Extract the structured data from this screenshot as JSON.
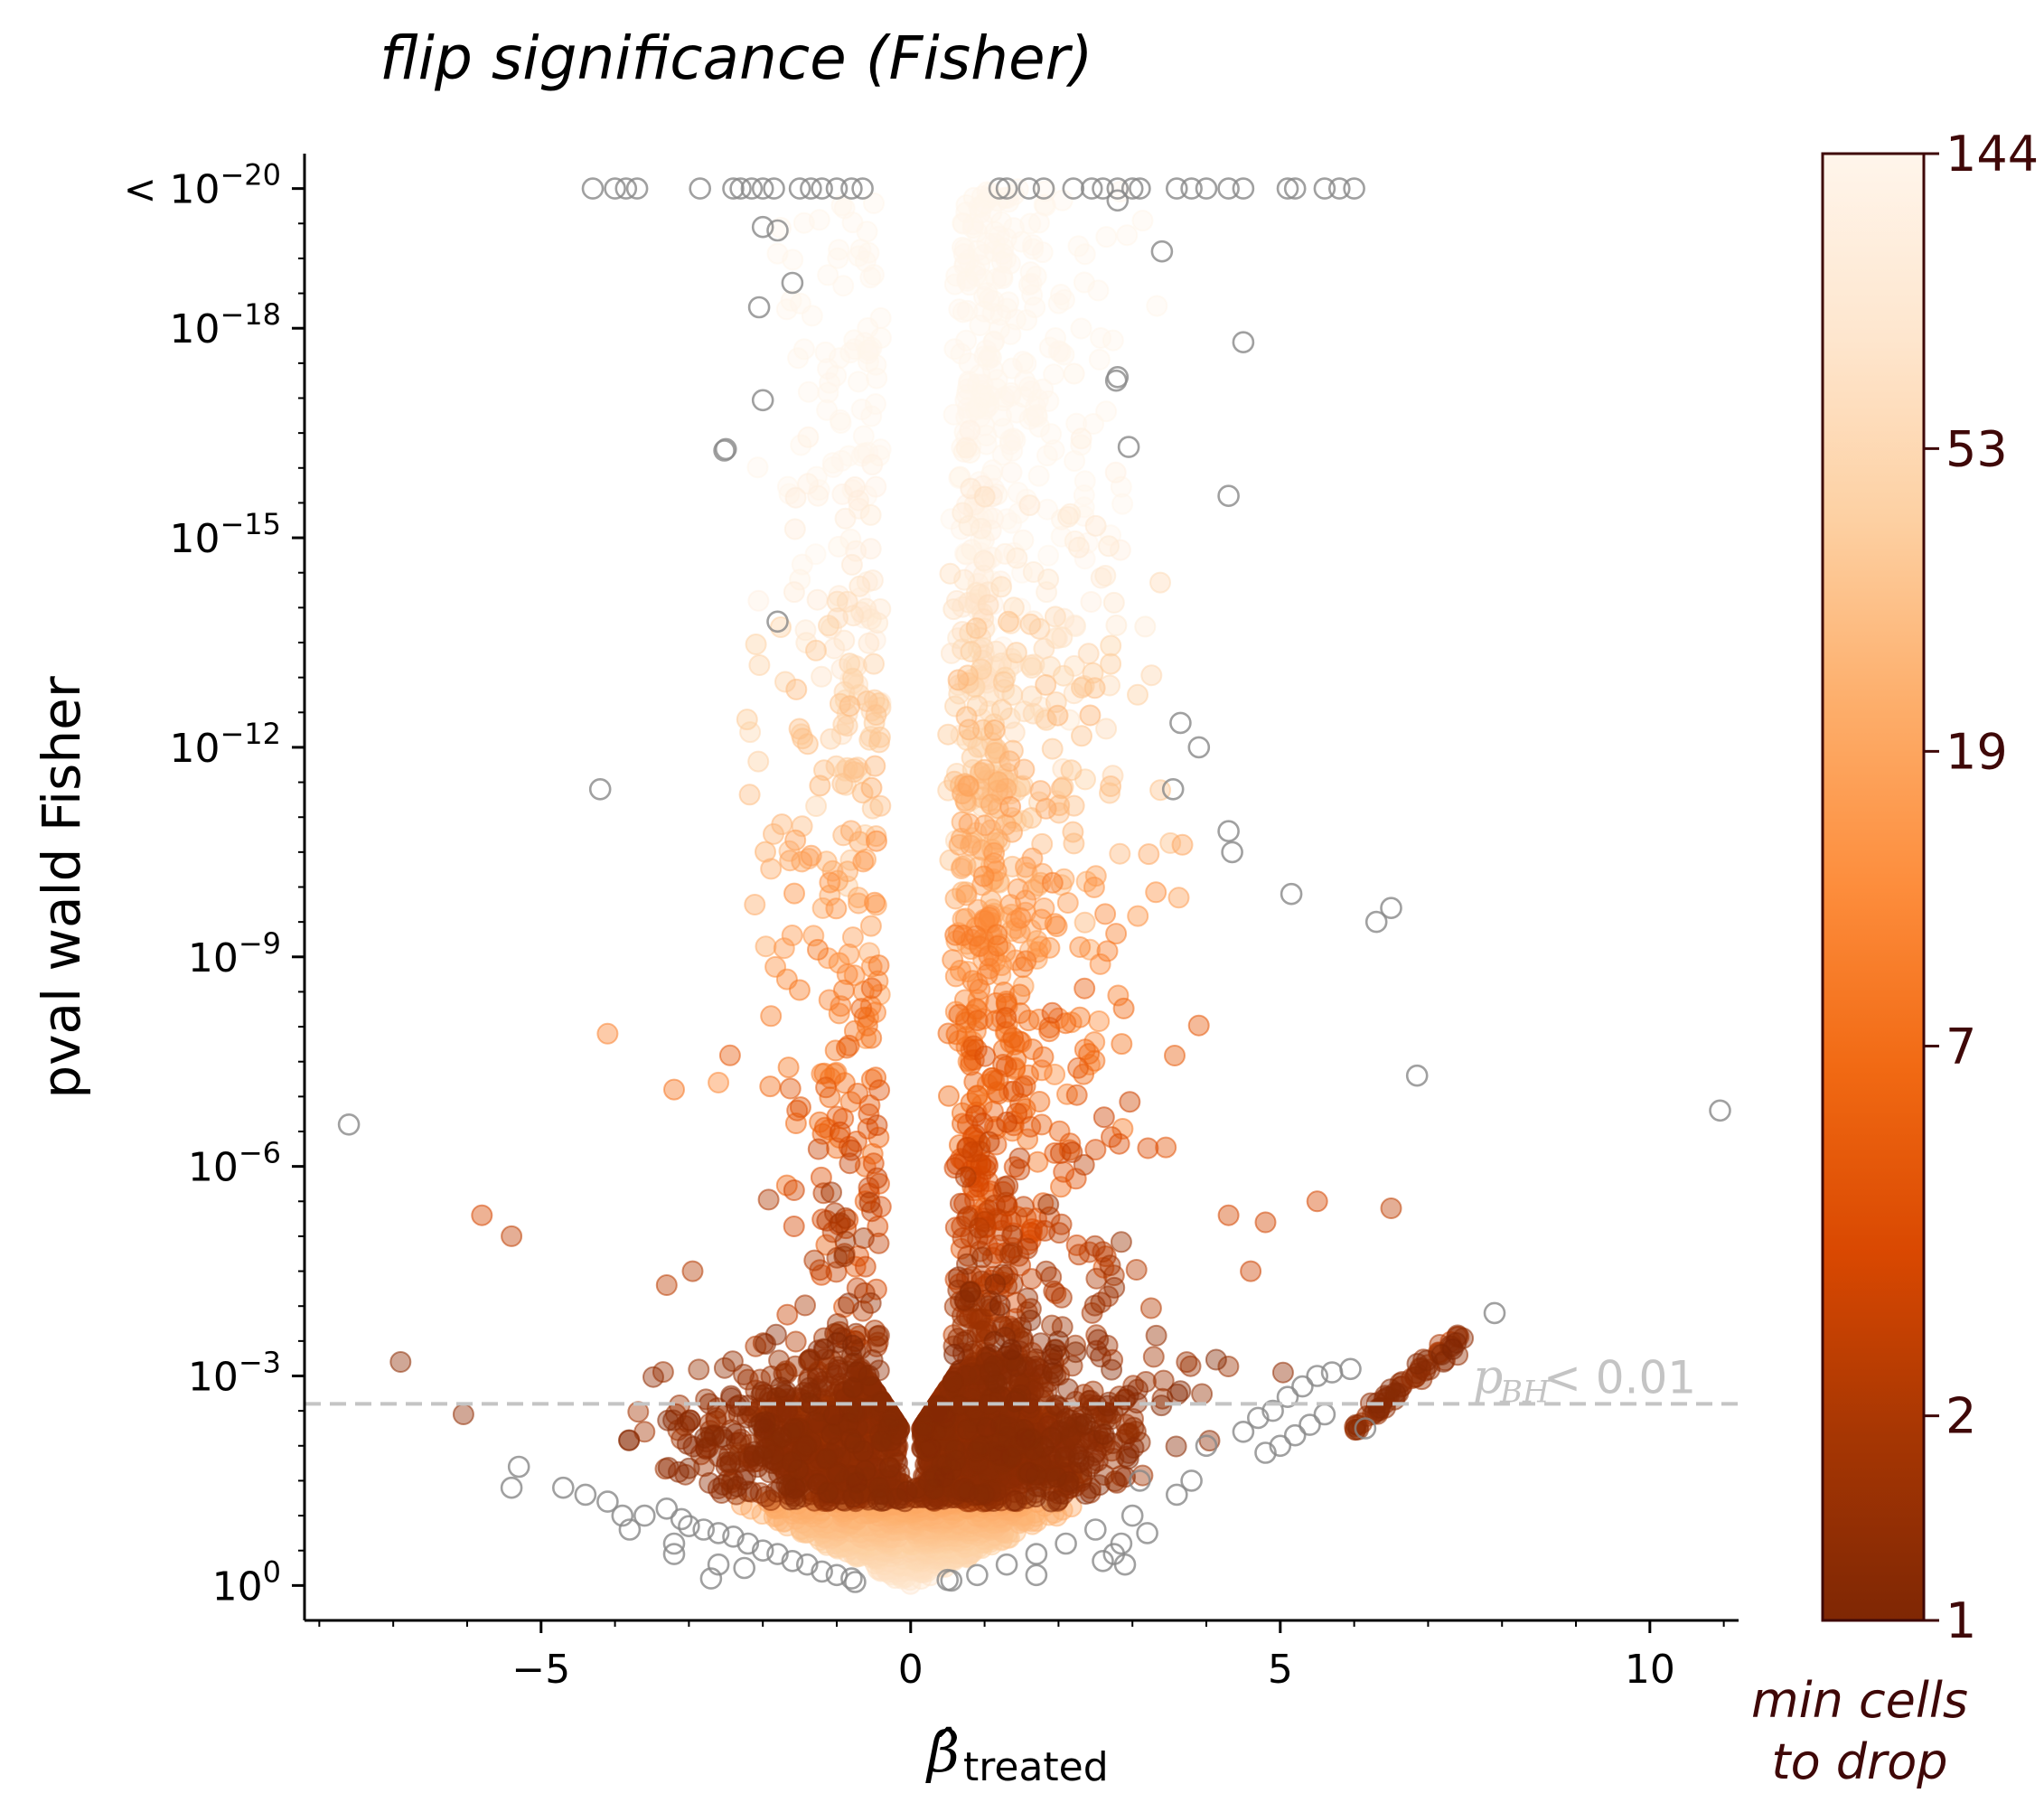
{
  "chart_data": {
    "type": "scatter",
    "title": "flip significance (Fisher)",
    "xlabel": "β̂",
    "xlabel_subscript": "treated",
    "ylabel": "pval wald Fisher",
    "y_scale": "log (inverted: more significant upward)",
    "xlim": [
      -8.2,
      11.2
    ],
    "ylim_neglog10": [
      -0.5,
      20.5
    ],
    "x_ticks": [
      {
        "value": -5,
        "label": "−5"
      },
      {
        "value": 0,
        "label": "0"
      },
      {
        "value": 5,
        "label": "5"
      },
      {
        "value": 10,
        "label": "10"
      }
    ],
    "y_ticks": [
      {
        "neglog10": 0,
        "base": "10",
        "exp": "0",
        "prefix": ""
      },
      {
        "neglog10": 3,
        "base": "10",
        "exp": "−3",
        "prefix": ""
      },
      {
        "neglog10": 6,
        "base": "10",
        "exp": "−6",
        "prefix": ""
      },
      {
        "neglog10": 9,
        "base": "10",
        "exp": "−9",
        "prefix": ""
      },
      {
        "neglog10": 12,
        "base": "10",
        "exp": "−12",
        "prefix": ""
      },
      {
        "neglog10": 15,
        "base": "10",
        "exp": "−15",
        "prefix": ""
      },
      {
        "neglog10": 18,
        "base": "10",
        "exp": "−18",
        "prefix": ""
      },
      {
        "neglog10": 20,
        "base": "10",
        "exp": "−20",
        "prefix": "< "
      }
    ],
    "threshold": {
      "neglog10_p": 2.6,
      "label_main": "p",
      "label_sub": "BH",
      "label_rest": " < 0.01",
      "color": "#c4c4c4"
    },
    "colorbar": {
      "label_line1": "min cells",
      "label_line2": "to drop",
      "label_color": "#3f0808",
      "scale": "log",
      "ticks": [
        1,
        2,
        7,
        19,
        53,
        144
      ],
      "tick_labels": [
        "1",
        "2",
        "7",
        "19",
        "53",
        "144"
      ],
      "colormap": "Oranges_r",
      "stops": [
        "#7f2704",
        "#a63603",
        "#d94801",
        "#f16913",
        "#fd8d3c",
        "#fdae6b",
        "#fdd0a2",
        "#fee6ce",
        "#fff5eb"
      ]
    },
    "open_marker_color": "#888888",
    "open_points": [
      [
        -4.3,
        20
      ],
      [
        -4.0,
        20
      ],
      [
        -3.85,
        20
      ],
      [
        -3.7,
        20
      ],
      [
        -2.85,
        20
      ],
      [
        -2.4,
        20
      ],
      [
        -2.3,
        20
      ],
      [
        -2.15,
        20
      ],
      [
        -2.0,
        20
      ],
      [
        -1.85,
        20
      ],
      [
        -1.5,
        20
      ],
      [
        -1.35,
        20
      ],
      [
        -1.2,
        20
      ],
      [
        -1.0,
        20
      ],
      [
        -0.8,
        20
      ],
      [
        -0.65,
        20
      ],
      [
        1.2,
        20
      ],
      [
        1.3,
        20
      ],
      [
        1.6,
        20
      ],
      [
        1.8,
        20
      ],
      [
        2.2,
        20
      ],
      [
        2.45,
        20
      ],
      [
        2.6,
        20
      ],
      [
        2.8,
        20
      ],
      [
        3.0,
        20
      ],
      [
        3.1,
        20
      ],
      [
        3.6,
        20
      ],
      [
        3.8,
        20
      ],
      [
        4.0,
        20
      ],
      [
        4.3,
        20
      ],
      [
        4.5,
        20
      ],
      [
        5.1,
        20
      ],
      [
        5.2,
        20
      ],
      [
        5.6,
        20
      ],
      [
        5.8,
        20
      ],
      [
        6.0,
        20
      ],
      [
        2.8,
        19.83
      ],
      [
        -2.0,
        19.45
      ],
      [
        -1.8,
        19.4
      ],
      [
        3.4,
        19.1
      ],
      [
        -1.6,
        18.65
      ],
      [
        -2.05,
        18.3
      ],
      [
        4.5,
        17.8
      ],
      [
        2.8,
        17.3
      ],
      [
        2.78,
        17.25
      ],
      [
        -2.0,
        16.97
      ],
      [
        -2.5,
        16.27
      ],
      [
        -2.52,
        16.25
      ],
      [
        2.95,
        16.3
      ],
      [
        4.3,
        15.6
      ],
      [
        -1.8,
        13.8
      ],
      [
        3.65,
        12.35
      ],
      [
        3.9,
        12.0
      ],
      [
        -4.2,
        11.4
      ],
      [
        3.55,
        11.4
      ],
      [
        4.3,
        10.8
      ],
      [
        4.35,
        10.5
      ],
      [
        5.15,
        9.9
      ],
      [
        6.3,
        9.5
      ],
      [
        6.5,
        9.7
      ],
      [
        6.85,
        7.3
      ],
      [
        10.95,
        6.8
      ],
      [
        -7.6,
        6.6
      ],
      [
        7.9,
        3.9
      ],
      [
        4.0,
        2.0
      ],
      [
        4.5,
        2.2
      ],
      [
        4.7,
        2.4
      ],
      [
        4.9,
        2.5
      ],
      [
        5.1,
        2.7
      ],
      [
        5.3,
        2.85
      ],
      [
        5.5,
        3.0
      ],
      [
        5.7,
        3.05
      ],
      [
        5.95,
        3.1
      ],
      [
        4.8,
        1.9
      ],
      [
        5.0,
        2.0
      ],
      [
        5.2,
        2.15
      ],
      [
        5.4,
        2.3
      ],
      [
        5.6,
        2.45
      ],
      [
        6.15,
        2.25
      ],
      [
        3.8,
        1.5
      ],
      [
        3.6,
        1.3
      ],
      [
        -5.3,
        1.7
      ],
      [
        -5.4,
        1.4
      ],
      [
        -4.7,
        1.4
      ],
      [
        -4.4,
        1.3
      ],
      [
        -4.1,
        1.2
      ],
      [
        -3.9,
        1.0
      ],
      [
        -3.6,
        1.0
      ],
      [
        -3.3,
        1.1
      ],
      [
        -3.1,
        0.95
      ],
      [
        -3.0,
        0.85
      ],
      [
        -2.8,
        0.8
      ],
      [
        -2.6,
        0.75
      ],
      [
        -2.4,
        0.7
      ],
      [
        -2.2,
        0.6
      ],
      [
        -2.0,
        0.5
      ],
      [
        -1.8,
        0.45
      ],
      [
        -1.6,
        0.35
      ],
      [
        -1.4,
        0.3
      ],
      [
        -1.2,
        0.2
      ],
      [
        -1.0,
        0.15
      ],
      [
        -0.8,
        0.1
      ],
      [
        -3.8,
        0.8
      ],
      [
        -3.2,
        0.6
      ],
      [
        -2.6,
        0.3
      ],
      [
        -3.2,
        0.45
      ],
      [
        -2.7,
        0.1
      ],
      [
        -2.25,
        0.25
      ],
      [
        -0.75,
        0.05
      ],
      [
        0.5,
        0.08
      ],
      [
        0.9,
        0.15
      ],
      [
        1.3,
        0.3
      ],
      [
        1.7,
        0.45
      ],
      [
        2.1,
        0.6
      ],
      [
        2.5,
        0.8
      ],
      [
        1.7,
        0.15
      ],
      [
        2.6,
        0.35
      ],
      [
        3.2,
        0.75
      ],
      [
        3.0,
        1.0
      ],
      [
        2.85,
        0.6
      ],
      [
        2.75,
        0.45
      ],
      [
        2.9,
        0.3
      ],
      [
        3.1,
        1.5
      ],
      [
        0.55,
        0.07
      ]
    ],
    "filled_points_note": "~4000 filled points in a V-shaped volcano cloud; color = min cells to drop (1–144); dense dark core around neglog10 p ≈ 2.5 at |β| ≈ 1–2; light colors at high significance; boundary ridge neglog10 p ≈ 0.5·|β|"
  }
}
